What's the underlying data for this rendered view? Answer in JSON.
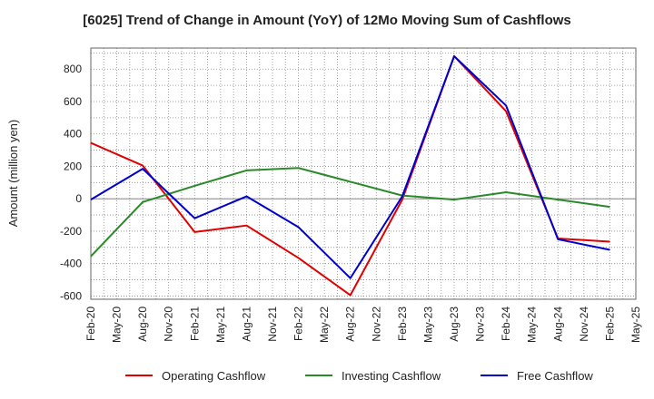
{
  "chart_data": {
    "type": "line",
    "title": "[6025]  Trend of Change in Amount (YoY) of 12Mo Moving Sum of Cashflows",
    "ylabel": "Amount (million yen)",
    "xlabel": "",
    "ylim": [
      -620,
      930
    ],
    "yticks": [
      -600,
      -400,
      -200,
      0,
      200,
      400,
      600,
      800
    ],
    "categories": [
      "Feb-20",
      "May-20",
      "Aug-20",
      "Nov-20",
      "Feb-21",
      "May-21",
      "Aug-21",
      "Nov-21",
      "Feb-22",
      "May-22",
      "Aug-22",
      "Nov-22",
      "Feb-23",
      "May-23",
      "Aug-23",
      "Nov-23",
      "Feb-24",
      "May-24",
      "Aug-24",
      "Nov-24",
      "Feb-25",
      "May-25"
    ],
    "series": [
      {
        "name": "Operating Cashflow",
        "color": "#e00000",
        "points": [
          [
            0,
            345
          ],
          [
            2,
            205
          ],
          [
            4,
            -205
          ],
          [
            6,
            -165
          ],
          [
            8,
            -365
          ],
          [
            10,
            -595
          ],
          [
            12,
            -5
          ],
          [
            14,
            880
          ],
          [
            16,
            540
          ],
          [
            18,
            -245
          ],
          [
            20,
            -265
          ]
        ]
      },
      {
        "name": "Investing Cashflow",
        "color": "#2a8a2a",
        "points": [
          [
            0,
            -355
          ],
          [
            2,
            -20
          ],
          [
            4,
            80
          ],
          [
            6,
            175
          ],
          [
            8,
            190
          ],
          [
            10,
            105
          ],
          [
            12,
            20
          ],
          [
            14,
            -5
          ],
          [
            16,
            40
          ],
          [
            18,
            -5
          ],
          [
            20,
            -50
          ]
        ]
      },
      {
        "name": "Free Cashflow",
        "color": "#0000cc",
        "points": [
          [
            0,
            -5
          ],
          [
            2,
            185
          ],
          [
            4,
            -120
          ],
          [
            6,
            15
          ],
          [
            8,
            -175
          ],
          [
            10,
            -490
          ],
          [
            12,
            15
          ],
          [
            14,
            880
          ],
          [
            16,
            575
          ],
          [
            18,
            -250
          ],
          [
            20,
            -315
          ]
        ]
      }
    ]
  }
}
